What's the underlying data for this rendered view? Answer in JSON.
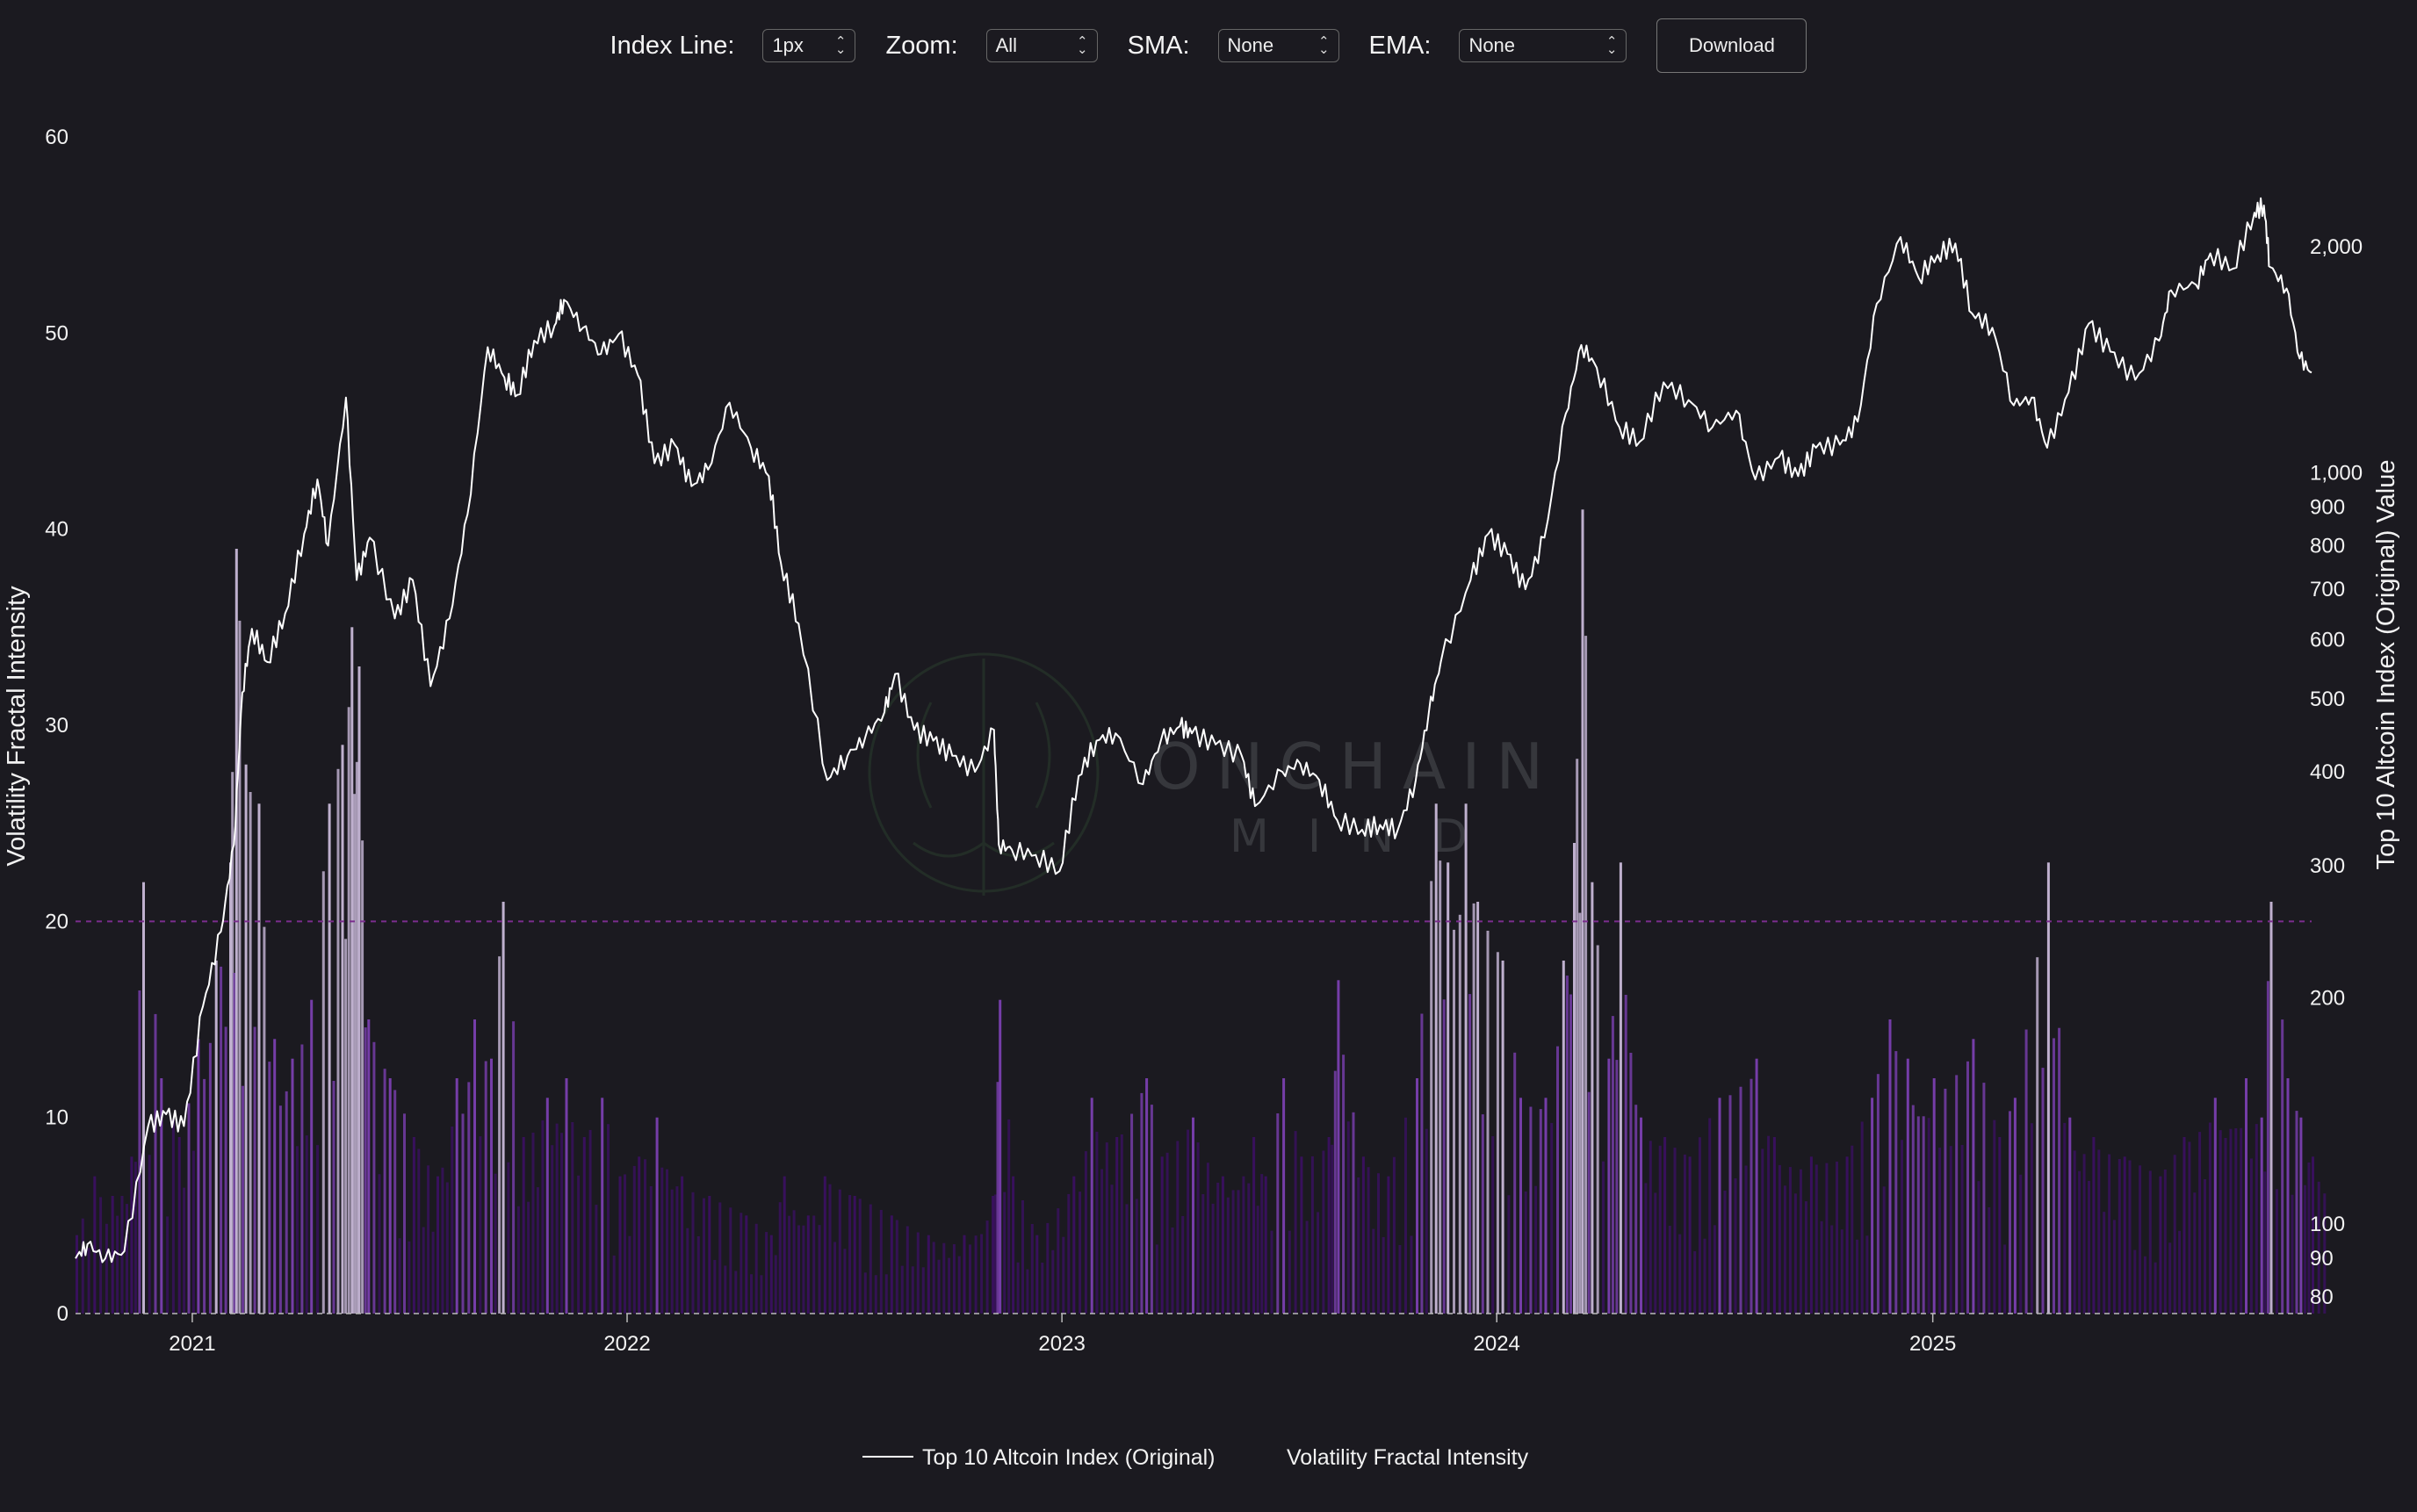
{
  "toolbar": {
    "index_line_label": "Index Line:",
    "index_line_value": "1px",
    "zoom_label": "Zoom:",
    "zoom_value": "All",
    "sma_label": "SMA:",
    "sma_value": "None",
    "ema_label": "EMA:",
    "ema_value": "None",
    "download_label": "Download"
  },
  "watermark": {
    "line1": "ONCHAIN",
    "line2": "MIND"
  },
  "chart_data": {
    "type": "line",
    "title": "",
    "left_axis": {
      "label": "Volatility Fractal Intensity",
      "range": [
        0,
        60
      ],
      "ticks": [
        0,
        10,
        20,
        30,
        40,
        50,
        60
      ]
    },
    "right_axis": {
      "label": "Top 10 Altcoin Index (Original) Value",
      "scale": "log",
      "range": [
        76,
        2800
      ],
      "ticks": [
        80,
        90,
        100,
        200,
        300,
        400,
        500,
        600,
        700,
        800,
        900,
        1000,
        2000
      ],
      "tick_labels": [
        "80",
        "90",
        "100",
        "200",
        "300",
        "400",
        "500",
        "600",
        "700",
        "800",
        "900",
        "1,000",
        "2,000"
      ]
    },
    "x_axis": {
      "range": [
        "2020-09-25",
        "2025-11-15"
      ],
      "ticks": [
        "2021-01-01",
        "2022-01-01",
        "2023-01-01",
        "2024-01-01",
        "2025-01-01"
      ],
      "tick_labels": [
        "2021",
        "2022",
        "2023",
        "2024",
        "2025"
      ]
    },
    "threshold_line": {
      "y": 20,
      "axis": "left",
      "style": "dashed",
      "color": "#7b2d8e"
    },
    "grid": false,
    "legend_placement": "bottom-center",
    "legend": [
      "Top 10 Altcoin Index (Original)",
      "Volatility Fractal Intensity"
    ],
    "series": [
      {
        "name": "Top 10 Altcoin Index (Original)",
        "axis": "right",
        "color": "#ffffff",
        "points": [
          [
            "2020-09-25",
            90
          ],
          [
            "2020-10-05",
            94
          ],
          [
            "2020-10-20",
            90
          ],
          [
            "2020-11-05",
            92
          ],
          [
            "2020-11-25",
            135
          ],
          [
            "2020-12-10",
            140
          ],
          [
            "2020-12-25",
            135
          ],
          [
            "2021-01-10",
            195
          ],
          [
            "2021-01-25",
            245
          ],
          [
            "2021-02-05",
            320
          ],
          [
            "2021-02-12",
            510
          ],
          [
            "2021-02-20",
            620
          ],
          [
            "2021-03-05",
            560
          ],
          [
            "2021-03-20",
            650
          ],
          [
            "2021-04-05",
            830
          ],
          [
            "2021-04-16",
            980
          ],
          [
            "2021-04-25",
            800
          ],
          [
            "2021-05-10",
            1260
          ],
          [
            "2021-05-19",
            720
          ],
          [
            "2021-05-30",
            820
          ],
          [
            "2021-06-20",
            640
          ],
          [
            "2021-07-05",
            720
          ],
          [
            "2021-07-20",
            520
          ],
          [
            "2021-08-05",
            640
          ],
          [
            "2021-08-20",
            880
          ],
          [
            "2021-09-06",
            1470
          ],
          [
            "2021-09-20",
            1340
          ],
          [
            "2021-10-01",
            1270
          ],
          [
            "2021-10-15",
            1500
          ],
          [
            "2021-11-01",
            1570
          ],
          [
            "2021-11-09",
            1700
          ],
          [
            "2021-11-25",
            1560
          ],
          [
            "2021-12-10",
            1440
          ],
          [
            "2021-12-25",
            1530
          ],
          [
            "2022-01-10",
            1350
          ],
          [
            "2022-01-24",
            1030
          ],
          [
            "2022-02-10",
            1090
          ],
          [
            "2022-02-24",
            960
          ],
          [
            "2022-03-10",
            1010
          ],
          [
            "2022-03-28",
            1240
          ],
          [
            "2022-04-15",
            1080
          ],
          [
            "2022-04-30",
            990
          ],
          [
            "2022-05-10",
            760
          ],
          [
            "2022-05-25",
            630
          ],
          [
            "2022-06-18",
            390
          ],
          [
            "2022-07-05",
            420
          ],
          [
            "2022-07-20",
            445
          ],
          [
            "2022-08-05",
            480
          ],
          [
            "2022-08-14",
            540
          ],
          [
            "2022-08-30",
            455
          ],
          [
            "2022-09-15",
            440
          ],
          [
            "2022-10-01",
            420
          ],
          [
            "2022-10-20",
            400
          ],
          [
            "2022-11-05",
            455
          ],
          [
            "2022-11-09",
            320
          ],
          [
            "2022-11-20",
            315
          ],
          [
            "2022-12-10",
            310
          ],
          [
            "2022-12-30",
            295
          ],
          [
            "2023-01-15",
            395
          ],
          [
            "2023-01-30",
            440
          ],
          [
            "2023-02-15",
            450
          ],
          [
            "2023-03-10",
            385
          ],
          [
            "2023-03-25",
            440
          ],
          [
            "2023-04-10",
            460
          ],
          [
            "2023-04-20",
            450
          ],
          [
            "2023-05-10",
            435
          ],
          [
            "2023-06-01",
            420
          ],
          [
            "2023-06-12",
            360
          ],
          [
            "2023-07-05",
            400
          ],
          [
            "2023-07-20",
            410
          ],
          [
            "2023-08-05",
            390
          ],
          [
            "2023-08-20",
            345
          ],
          [
            "2023-09-10",
            335
          ],
          [
            "2023-09-25",
            340
          ],
          [
            "2023-10-10",
            335
          ],
          [
            "2023-10-25",
            390
          ],
          [
            "2023-11-05",
            480
          ],
          [
            "2023-11-15",
            560
          ],
          [
            "2023-12-10",
            720
          ],
          [
            "2023-12-25",
            830
          ],
          [
            "2024-01-10",
            780
          ],
          [
            "2024-01-25",
            700
          ],
          [
            "2024-02-10",
            820
          ],
          [
            "2024-02-28",
            1200
          ],
          [
            "2024-03-12",
            1480
          ],
          [
            "2024-03-25",
            1380
          ],
          [
            "2024-04-13",
            1150
          ],
          [
            "2024-04-30",
            1100
          ],
          [
            "2024-05-20",
            1320
          ],
          [
            "2024-06-10",
            1250
          ],
          [
            "2024-06-30",
            1150
          ],
          [
            "2024-07-20",
            1210
          ],
          [
            "2024-08-05",
            980
          ],
          [
            "2024-08-25",
            1050
          ],
          [
            "2024-09-10",
            990
          ],
          [
            "2024-09-25",
            1080
          ],
          [
            "2024-10-15",
            1090
          ],
          [
            "2024-10-30",
            1170
          ],
          [
            "2024-11-15",
            1680
          ],
          [
            "2024-12-05",
            2060
          ],
          [
            "2024-12-20",
            1820
          ],
          [
            "2025-01-05",
            1950
          ],
          [
            "2025-01-20",
            2020
          ],
          [
            "2025-02-03",
            1630
          ],
          [
            "2025-02-20",
            1560
          ],
          [
            "2025-03-10",
            1230
          ],
          [
            "2025-03-25",
            1260
          ],
          [
            "2025-04-07",
            1080
          ],
          [
            "2025-04-25",
            1280
          ],
          [
            "2025-05-12",
            1580
          ],
          [
            "2025-05-30",
            1450
          ],
          [
            "2025-06-20",
            1330
          ],
          [
            "2025-07-10",
            1500
          ],
          [
            "2025-07-20",
            1750
          ],
          [
            "2025-08-10",
            1780
          ],
          [
            "2025-08-22",
            1960
          ],
          [
            "2025-09-10",
            1870
          ],
          [
            "2025-09-28",
            2220
          ],
          [
            "2025-10-06",
            2270
          ],
          [
            "2025-10-11",
            1880
          ],
          [
            "2025-10-25",
            1760
          ],
          [
            "2025-11-05",
            1420
          ],
          [
            "2025-11-15",
            1360
          ]
        ]
      },
      {
        "name": "Volatility Fractal Intensity",
        "axis": "left",
        "color_scale": [
          "#3a1060",
          "#7a3fb0",
          "#c8b8d8"
        ],
        "points": [
          [
            "2020-09-25",
            4
          ],
          [
            "2020-10-10",
            7
          ],
          [
            "2020-10-25",
            6
          ],
          [
            "2020-11-10",
            8
          ],
          [
            "2020-11-20",
            22
          ],
          [
            "2020-12-05",
            12
          ],
          [
            "2020-12-20",
            9
          ],
          [
            "2021-01-05",
            14
          ],
          [
            "2021-01-20",
            18
          ],
          [
            "2021-02-01",
            23
          ],
          [
            "2021-02-06",
            39
          ],
          [
            "2021-02-14",
            28
          ],
          [
            "2021-02-25",
            26
          ],
          [
            "2021-03-10",
            14
          ],
          [
            "2021-03-25",
            13
          ],
          [
            "2021-04-10",
            16
          ],
          [
            "2021-04-25",
            26
          ],
          [
            "2021-05-06",
            29
          ],
          [
            "2021-05-14",
            35
          ],
          [
            "2021-05-20",
            33
          ],
          [
            "2021-05-28",
            15
          ],
          [
            "2021-06-15",
            12
          ],
          [
            "2021-07-05",
            9
          ],
          [
            "2021-07-25",
            7
          ],
          [
            "2021-08-10",
            12
          ],
          [
            "2021-08-25",
            15
          ],
          [
            "2021-09-08",
            13
          ],
          [
            "2021-09-18",
            21
          ],
          [
            "2021-10-05",
            9
          ],
          [
            "2021-10-25",
            11
          ],
          [
            "2021-11-10",
            12
          ],
          [
            "2021-11-25",
            9
          ],
          [
            "2021-12-10",
            11
          ],
          [
            "2021-12-25",
            7
          ],
          [
            "2022-01-10",
            8
          ],
          [
            "2022-01-25",
            10
          ],
          [
            "2022-02-15",
            7
          ],
          [
            "2022-03-10",
            6
          ],
          [
            "2022-04-10",
            5
          ],
          [
            "2022-05-01",
            4
          ],
          [
            "2022-05-12",
            7
          ],
          [
            "2022-06-01",
            5
          ],
          [
            "2022-06-15",
            7
          ],
          [
            "2022-07-10",
            6
          ],
          [
            "2022-08-10",
            5
          ],
          [
            "2022-09-10",
            4
          ],
          [
            "2022-10-10",
            4
          ],
          [
            "2022-11-03",
            6
          ],
          [
            "2022-11-09",
            16
          ],
          [
            "2022-11-20",
            7
          ],
          [
            "2022-12-10",
            4
          ],
          [
            "2023-01-10",
            7
          ],
          [
            "2023-01-25",
            11
          ],
          [
            "2023-02-15",
            9
          ],
          [
            "2023-03-12",
            12
          ],
          [
            "2023-03-25",
            8
          ],
          [
            "2023-04-20",
            10
          ],
          [
            "2023-05-15",
            7
          ],
          [
            "2023-06-10",
            9
          ],
          [
            "2023-06-20",
            7
          ],
          [
            "2023-07-05",
            12
          ],
          [
            "2023-07-20",
            8
          ],
          [
            "2023-08-12",
            9
          ],
          [
            "2023-08-20",
            17
          ],
          [
            "2023-09-10",
            8
          ],
          [
            "2023-10-01",
            7
          ],
          [
            "2023-10-25",
            12
          ],
          [
            "2023-11-10",
            26
          ],
          [
            "2023-11-20",
            23
          ],
          [
            "2023-12-05",
            26
          ],
          [
            "2023-12-15",
            21
          ],
          [
            "2024-01-05",
            18
          ],
          [
            "2024-01-20",
            11
          ],
          [
            "2024-02-10",
            11
          ],
          [
            "2024-02-25",
            18
          ],
          [
            "2024-03-05",
            24
          ],
          [
            "2024-03-12",
            41
          ],
          [
            "2024-03-20",
            22
          ],
          [
            "2024-04-03",
            13
          ],
          [
            "2024-04-13",
            23
          ],
          [
            "2024-04-30",
            10
          ],
          [
            "2024-05-20",
            9
          ],
          [
            "2024-06-10",
            8
          ],
          [
            "2024-07-05",
            11
          ],
          [
            "2024-08-05",
            13
          ],
          [
            "2024-08-20",
            9
          ],
          [
            "2024-09-20",
            8
          ],
          [
            "2024-10-20",
            8
          ],
          [
            "2024-11-10",
            11
          ],
          [
            "2024-11-25",
            15
          ],
          [
            "2024-12-10",
            13
          ],
          [
            "2025-01-01",
            12
          ],
          [
            "2025-02-03",
            14
          ],
          [
            "2025-02-25",
            9
          ],
          [
            "2025-03-10",
            11
          ],
          [
            "2025-04-07",
            23
          ],
          [
            "2025-04-25",
            10
          ],
          [
            "2025-05-15",
            9
          ],
          [
            "2025-06-10",
            8
          ],
          [
            "2025-07-10",
            7
          ],
          [
            "2025-07-30",
            9
          ],
          [
            "2025-08-25",
            11
          ],
          [
            "2025-09-20",
            12
          ],
          [
            "2025-10-03",
            10
          ],
          [
            "2025-10-11",
            21
          ],
          [
            "2025-10-25",
            12
          ],
          [
            "2025-11-05",
            10
          ],
          [
            "2025-11-15",
            8
          ]
        ]
      }
    ]
  }
}
